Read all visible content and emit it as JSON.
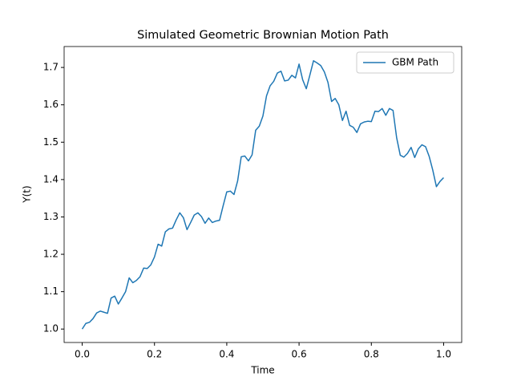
{
  "chart_data": {
    "type": "line",
    "title": "Simulated Geometric Brownian Motion Path",
    "x_label": "Time",
    "y_label": "Y(t)",
    "x": [
      0,
      0.01,
      0.02,
      0.03,
      0.04,
      0.05,
      0.06,
      0.07,
      0.08,
      0.09,
      0.1,
      0.11,
      0.12,
      0.13,
      0.14,
      0.15,
      0.16,
      0.17,
      0.18,
      0.19,
      0.2,
      0.21,
      0.22,
      0.23,
      0.24,
      0.25,
      0.26,
      0.27,
      0.28,
      0.29,
      0.3,
      0.31,
      0.32,
      0.33,
      0.34,
      0.35,
      0.36,
      0.37,
      0.38,
      0.39,
      0.4,
      0.41,
      0.42,
      0.43,
      0.44,
      0.45,
      0.46,
      0.47,
      0.48,
      0.49,
      0.5,
      0.51,
      0.52,
      0.53,
      0.54,
      0.55,
      0.56,
      0.57,
      0.58,
      0.59,
      0.6,
      0.61,
      0.62,
      0.63,
      0.64,
      0.65,
      0.66,
      0.67,
      0.68,
      0.69,
      0.7,
      0.71,
      0.72,
      0.73,
      0.74,
      0.75,
      0.76,
      0.77,
      0.78,
      0.79,
      0.8,
      0.81,
      0.82,
      0.83,
      0.84,
      0.85,
      0.86,
      0.87,
      0.88,
      0.89,
      0.9,
      0.91,
      0.92,
      0.93,
      0.94,
      0.95,
      0.96,
      0.97,
      0.98,
      0.99,
      1
    ],
    "series": [
      {
        "name": "GBM Path",
        "color": "#1f77b4",
        "values": [
          1.0,
          1.015,
          1.018,
          1.028,
          1.043,
          1.048,
          1.045,
          1.042,
          1.083,
          1.088,
          1.067,
          1.083,
          1.1,
          1.137,
          1.124,
          1.13,
          1.14,
          1.163,
          1.162,
          1.172,
          1.193,
          1.227,
          1.222,
          1.26,
          1.268,
          1.27,
          1.292,
          1.311,
          1.298,
          1.266,
          1.285,
          1.305,
          1.311,
          1.301,
          1.283,
          1.297,
          1.285,
          1.289,
          1.291,
          1.33,
          1.367,
          1.369,
          1.36,
          1.396,
          1.461,
          1.463,
          1.45,
          1.466,
          1.532,
          1.543,
          1.57,
          1.624,
          1.651,
          1.663,
          1.685,
          1.69,
          1.664,
          1.666,
          1.679,
          1.672,
          1.709,
          1.667,
          1.643,
          1.68,
          1.718,
          1.712,
          1.705,
          1.688,
          1.66,
          1.609,
          1.617,
          1.6,
          1.558,
          1.583,
          1.545,
          1.54,
          1.526,
          1.549,
          1.554,
          1.556,
          1.555,
          1.583,
          1.582,
          1.59,
          1.572,
          1.59,
          1.585,
          1.512,
          1.465,
          1.46,
          1.47,
          1.486,
          1.459,
          1.482,
          1.493,
          1.488,
          1.462,
          1.425,
          1.381,
          1.395,
          1.405
        ]
      }
    ],
    "xlim": [
      -0.05,
      1.05
    ],
    "ylim": [
      0.964,
      1.756
    ],
    "xticks": [
      {
        "value": 0,
        "label": "0.0"
      },
      0.2,
      0.4,
      0.6,
      0.8,
      {
        "value": 1,
        "label": "1.0"
      }
    ],
    "yticks": [
      {
        "value": 1,
        "label": "1.0"
      },
      1.1,
      1.2,
      1.3,
      1.4,
      1.5,
      1.6,
      1.7
    ],
    "legend": "upper right",
    "grid": false
  }
}
